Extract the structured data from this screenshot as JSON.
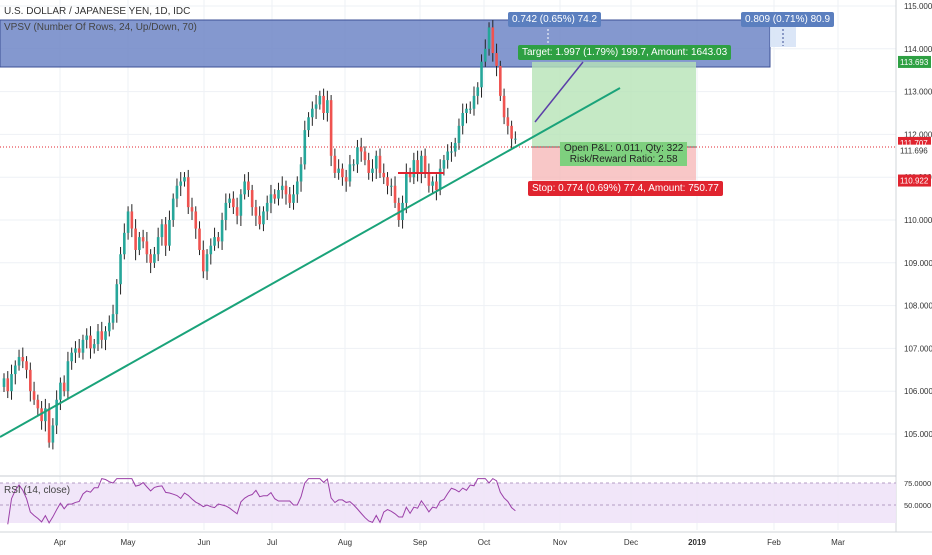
{
  "header": {
    "symbol_title": "U.S. DOLLAR / JAPANESE YEN, 1D, IDC",
    "vpsv_label": "VPSV (Number Of Rows, 24, Up/Down, 70)",
    "rsi_label": "RSI (14, close)"
  },
  "colors": {
    "up": "#26a69a",
    "down": "#ef5350",
    "trendline": "#1aa37a",
    "box_blue": "#6f86c7",
    "target_zone": "#b7e4b7",
    "stop_zone": "#f6b9b9",
    "rsi_line": "#9b3fa8",
    "rsi_band": "#efe3f8"
  },
  "chart_data": {
    "type": "candlestick",
    "title": "U.S. DOLLAR / JAPANESE YEN, 1D, IDC",
    "x_ticks": [
      "Apr",
      "May",
      "Jun",
      "Jul",
      "Aug",
      "Sep",
      "Oct",
      "Nov",
      "Dec",
      "2019",
      "Feb",
      "Mar"
    ],
    "y_ticks": [
      "115.000",
      "114.000",
      "113.000",
      "112.000",
      "111.000",
      "110.000",
      "109.000",
      "108.000",
      "107.000",
      "106.000",
      "105.000"
    ],
    "ylim": [
      104.2,
      115.1
    ],
    "closes": [
      106.3,
      106.0,
      106.4,
      106.6,
      106.8,
      106.7,
      106.5,
      106.0,
      105.8,
      105.6,
      105.3,
      105.6,
      104.8,
      105.2,
      105.8,
      106.2,
      106.0,
      106.7,
      106.9,
      107.0,
      106.9,
      107.2,
      107.3,
      107.0,
      107.1,
      107.4,
      107.2,
      107.4,
      107.6,
      107.8,
      108.5,
      109.2,
      109.7,
      110.2,
      109.8,
      109.3,
      109.6,
      109.5,
      109.2,
      109.0,
      109.2,
      109.6,
      109.9,
      109.4,
      110.0,
      110.5,
      110.8,
      110.9,
      111.0,
      110.3,
      110.2,
      109.8,
      109.3,
      108.8,
      109.2,
      109.4,
      109.6,
      109.5,
      110.0,
      110.4,
      110.5,
      110.3,
      110.1,
      110.6,
      110.9,
      110.7,
      110.3,
      110.1,
      109.9,
      110.2,
      110.4,
      110.6,
      110.5,
      110.7,
      110.8,
      110.6,
      110.4,
      110.6,
      110.9,
      111.3,
      112.1,
      112.4,
      112.6,
      112.7,
      112.9,
      112.5,
      112.8,
      111.5,
      111.1,
      111.2,
      111.0,
      110.9,
      111.3,
      111.3,
      111.7,
      111.6,
      111.4,
      111.1,
      111.2,
      111.5,
      111.1,
      111.0,
      110.8,
      110.8,
      110.4,
      110.0,
      110.4,
      111.1,
      111.0,
      111.4,
      111.1,
      111.5,
      111.1,
      110.8,
      110.9,
      110.7,
      111.2,
      111.4,
      111.6,
      111.6,
      111.8,
      112.2,
      112.5,
      112.6,
      112.6,
      112.9,
      113.1,
      113.7,
      114.0,
      114.5,
      113.9,
      113.6,
      112.9,
      112.4,
      112.2,
      111.9,
      111.9
    ]
  },
  "price_labels": {
    "current": "111.707",
    "last": "111.696",
    "target_line": "113.693",
    "stop_line": "110.922"
  },
  "rsi_ticks": [
    "75.0000",
    "50.0000"
  ],
  "annotations": {
    "range_left": "0.742 (0.65%) 74.2",
    "range_right": "0.809 (0.71%) 80.9",
    "target": "Target: 1.997 (1.79%) 199.7, Amount: 1643.03",
    "open_pl": "Open P&L: 0.011, Qty: 322",
    "risk_reward": "Risk/Reward Ratio: 2.58",
    "stop": "Stop: 0.774 (0.69%) 77.4, Amount: 750.77"
  }
}
